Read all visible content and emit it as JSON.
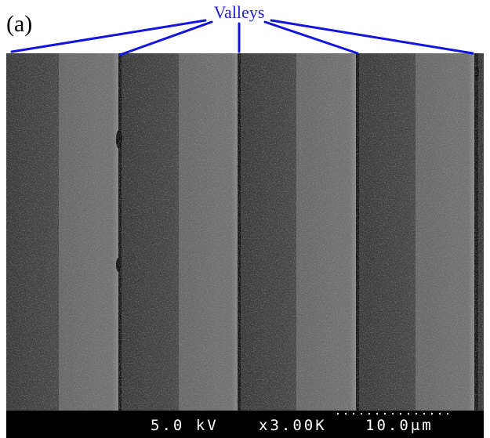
{
  "panel_label": "(a)",
  "annotation": "Valleys",
  "scale_bar": {
    "voltage": "5.0 kV",
    "magnification": "x3.00K",
    "length": "10.0μm"
  }
}
